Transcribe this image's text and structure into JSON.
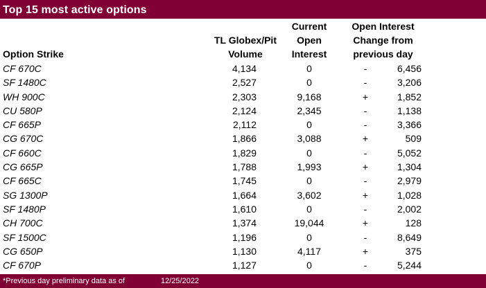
{
  "title": "Top 15 most active options",
  "headers": {
    "strike": "Option Strike",
    "volume": [
      "TL Globex/Pit",
      "Volume"
    ],
    "open_interest": [
      "Current",
      "Open",
      "Interest"
    ],
    "change": [
      "Open Interest",
      "Change from",
      "previous day"
    ]
  },
  "rows": [
    {
      "strike": "CF 670C",
      "volume": "4,134",
      "open_interest": "0",
      "sign": "-",
      "change": "6,456"
    },
    {
      "strike": "SF 1480C",
      "volume": "2,527",
      "open_interest": "0",
      "sign": "-",
      "change": "3,206"
    },
    {
      "strike": "WH 900C",
      "volume": "2,303",
      "open_interest": "9,168",
      "sign": "+",
      "change": "1,852"
    },
    {
      "strike": "CU 580P",
      "volume": "2,124",
      "open_interest": "2,345",
      "sign": "-",
      "change": "1,138"
    },
    {
      "strike": "CF 665P",
      "volume": "2,112",
      "open_interest": "0",
      "sign": "-",
      "change": "3,366"
    },
    {
      "strike": "CG 670C",
      "volume": "1,866",
      "open_interest": "3,088",
      "sign": "+",
      "change": "509"
    },
    {
      "strike": "CF 660C",
      "volume": "1,829",
      "open_interest": "0",
      "sign": "-",
      "change": "5,052"
    },
    {
      "strike": "CG 665P",
      "volume": "1,788",
      "open_interest": "1,993",
      "sign": "+",
      "change": "1,304"
    },
    {
      "strike": "CF 665C",
      "volume": "1,745",
      "open_interest": "0",
      "sign": "-",
      "change": "2,979"
    },
    {
      "strike": "SG 1300P",
      "volume": "1,664",
      "open_interest": "3,602",
      "sign": "+",
      "change": "1,028"
    },
    {
      "strike": "SF 1480P",
      "volume": "1,610",
      "open_interest": "0",
      "sign": "-",
      "change": "2,002"
    },
    {
      "strike": "CH 700C",
      "volume": "1,374",
      "open_interest": "19,044",
      "sign": "+",
      "change": "128"
    },
    {
      "strike": "SF 1500C",
      "volume": "1,196",
      "open_interest": "0",
      "sign": "-",
      "change": "8,649"
    },
    {
      "strike": "CG 650P",
      "volume": "1,130",
      "open_interest": "4,117",
      "sign": "+",
      "change": "375"
    },
    {
      "strike": "CF 670P",
      "volume": "1,127",
      "open_interest": "0",
      "sign": "-",
      "change": "5,244"
    }
  ],
  "footer": {
    "note": "*Previous day preliminary data as of",
    "date": "12/25/2022"
  },
  "colors": {
    "bar": "#800033"
  }
}
